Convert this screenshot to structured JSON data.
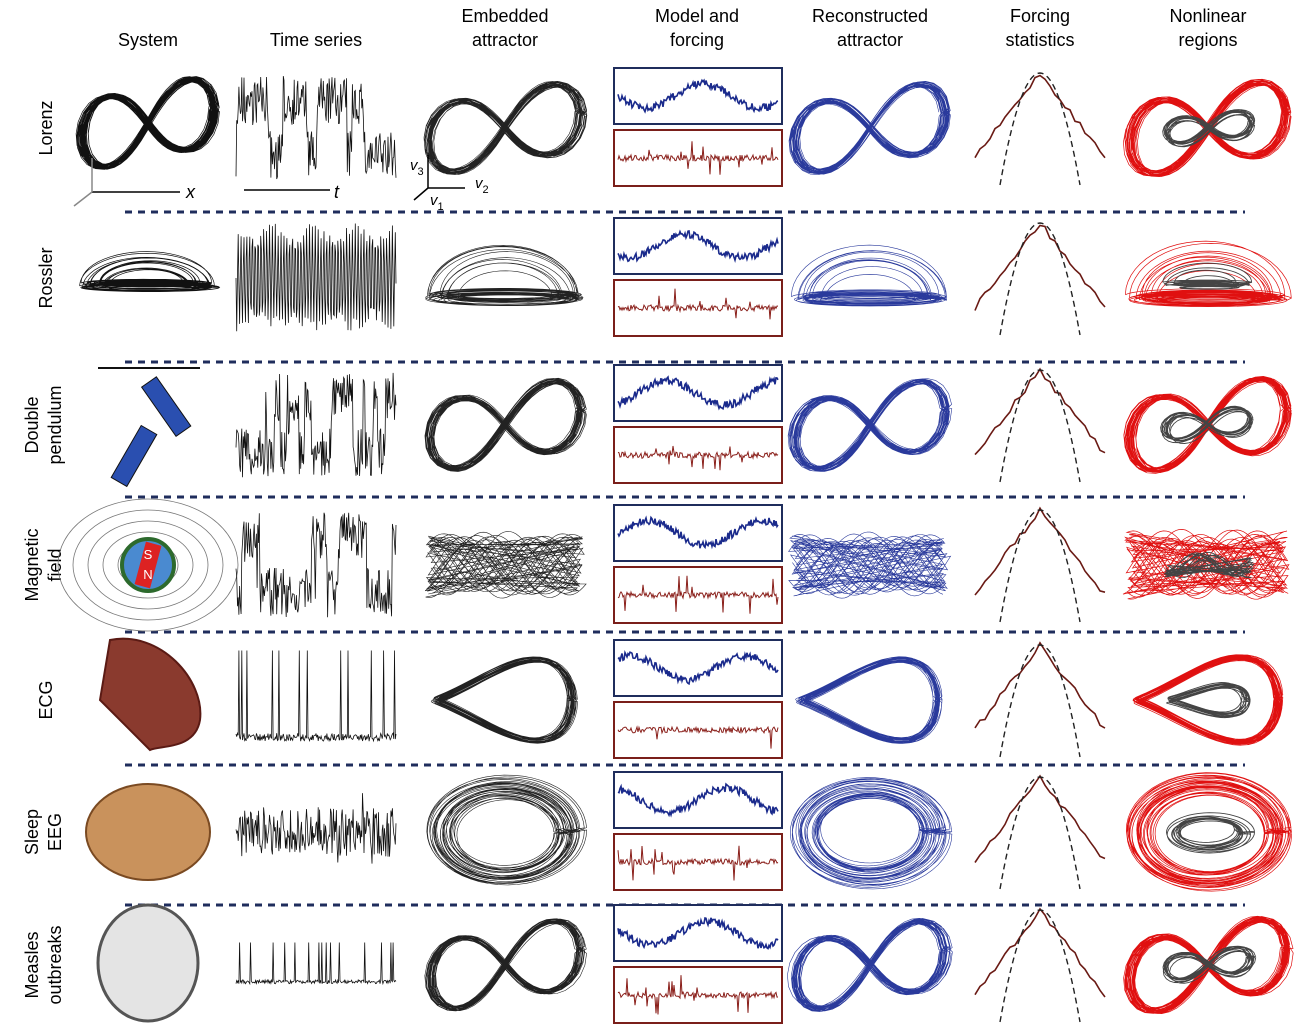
{
  "columns": [
    [
      "System"
    ],
    [
      "Time series"
    ],
    [
      "Embedded",
      "attractor"
    ],
    [
      "Model and",
      "forcing"
    ],
    [
      "Reconstructed",
      "attractor"
    ],
    [
      "Forcing",
      "statistics"
    ],
    [
      "Nonlinear",
      "regions"
    ]
  ],
  "rows": [
    [
      "Lorenz"
    ],
    [
      "Rossler"
    ],
    [
      "Double",
      "pendulum"
    ],
    [
      "Magnetic",
      "field"
    ],
    [
      "ECG"
    ],
    [
      "Sleep",
      "EEG"
    ],
    [
      "Measles",
      "outbreaks"
    ]
  ],
  "axis_labels": {
    "x": "x",
    "t": "t"
  },
  "embedding_axes": [
    {
      "symbol": "v",
      "index": "3"
    },
    {
      "symbol": "v",
      "index": "2"
    },
    {
      "symbol": "v",
      "index": "1"
    }
  ],
  "magnet_poles": [
    "S",
    "N"
  ]
}
